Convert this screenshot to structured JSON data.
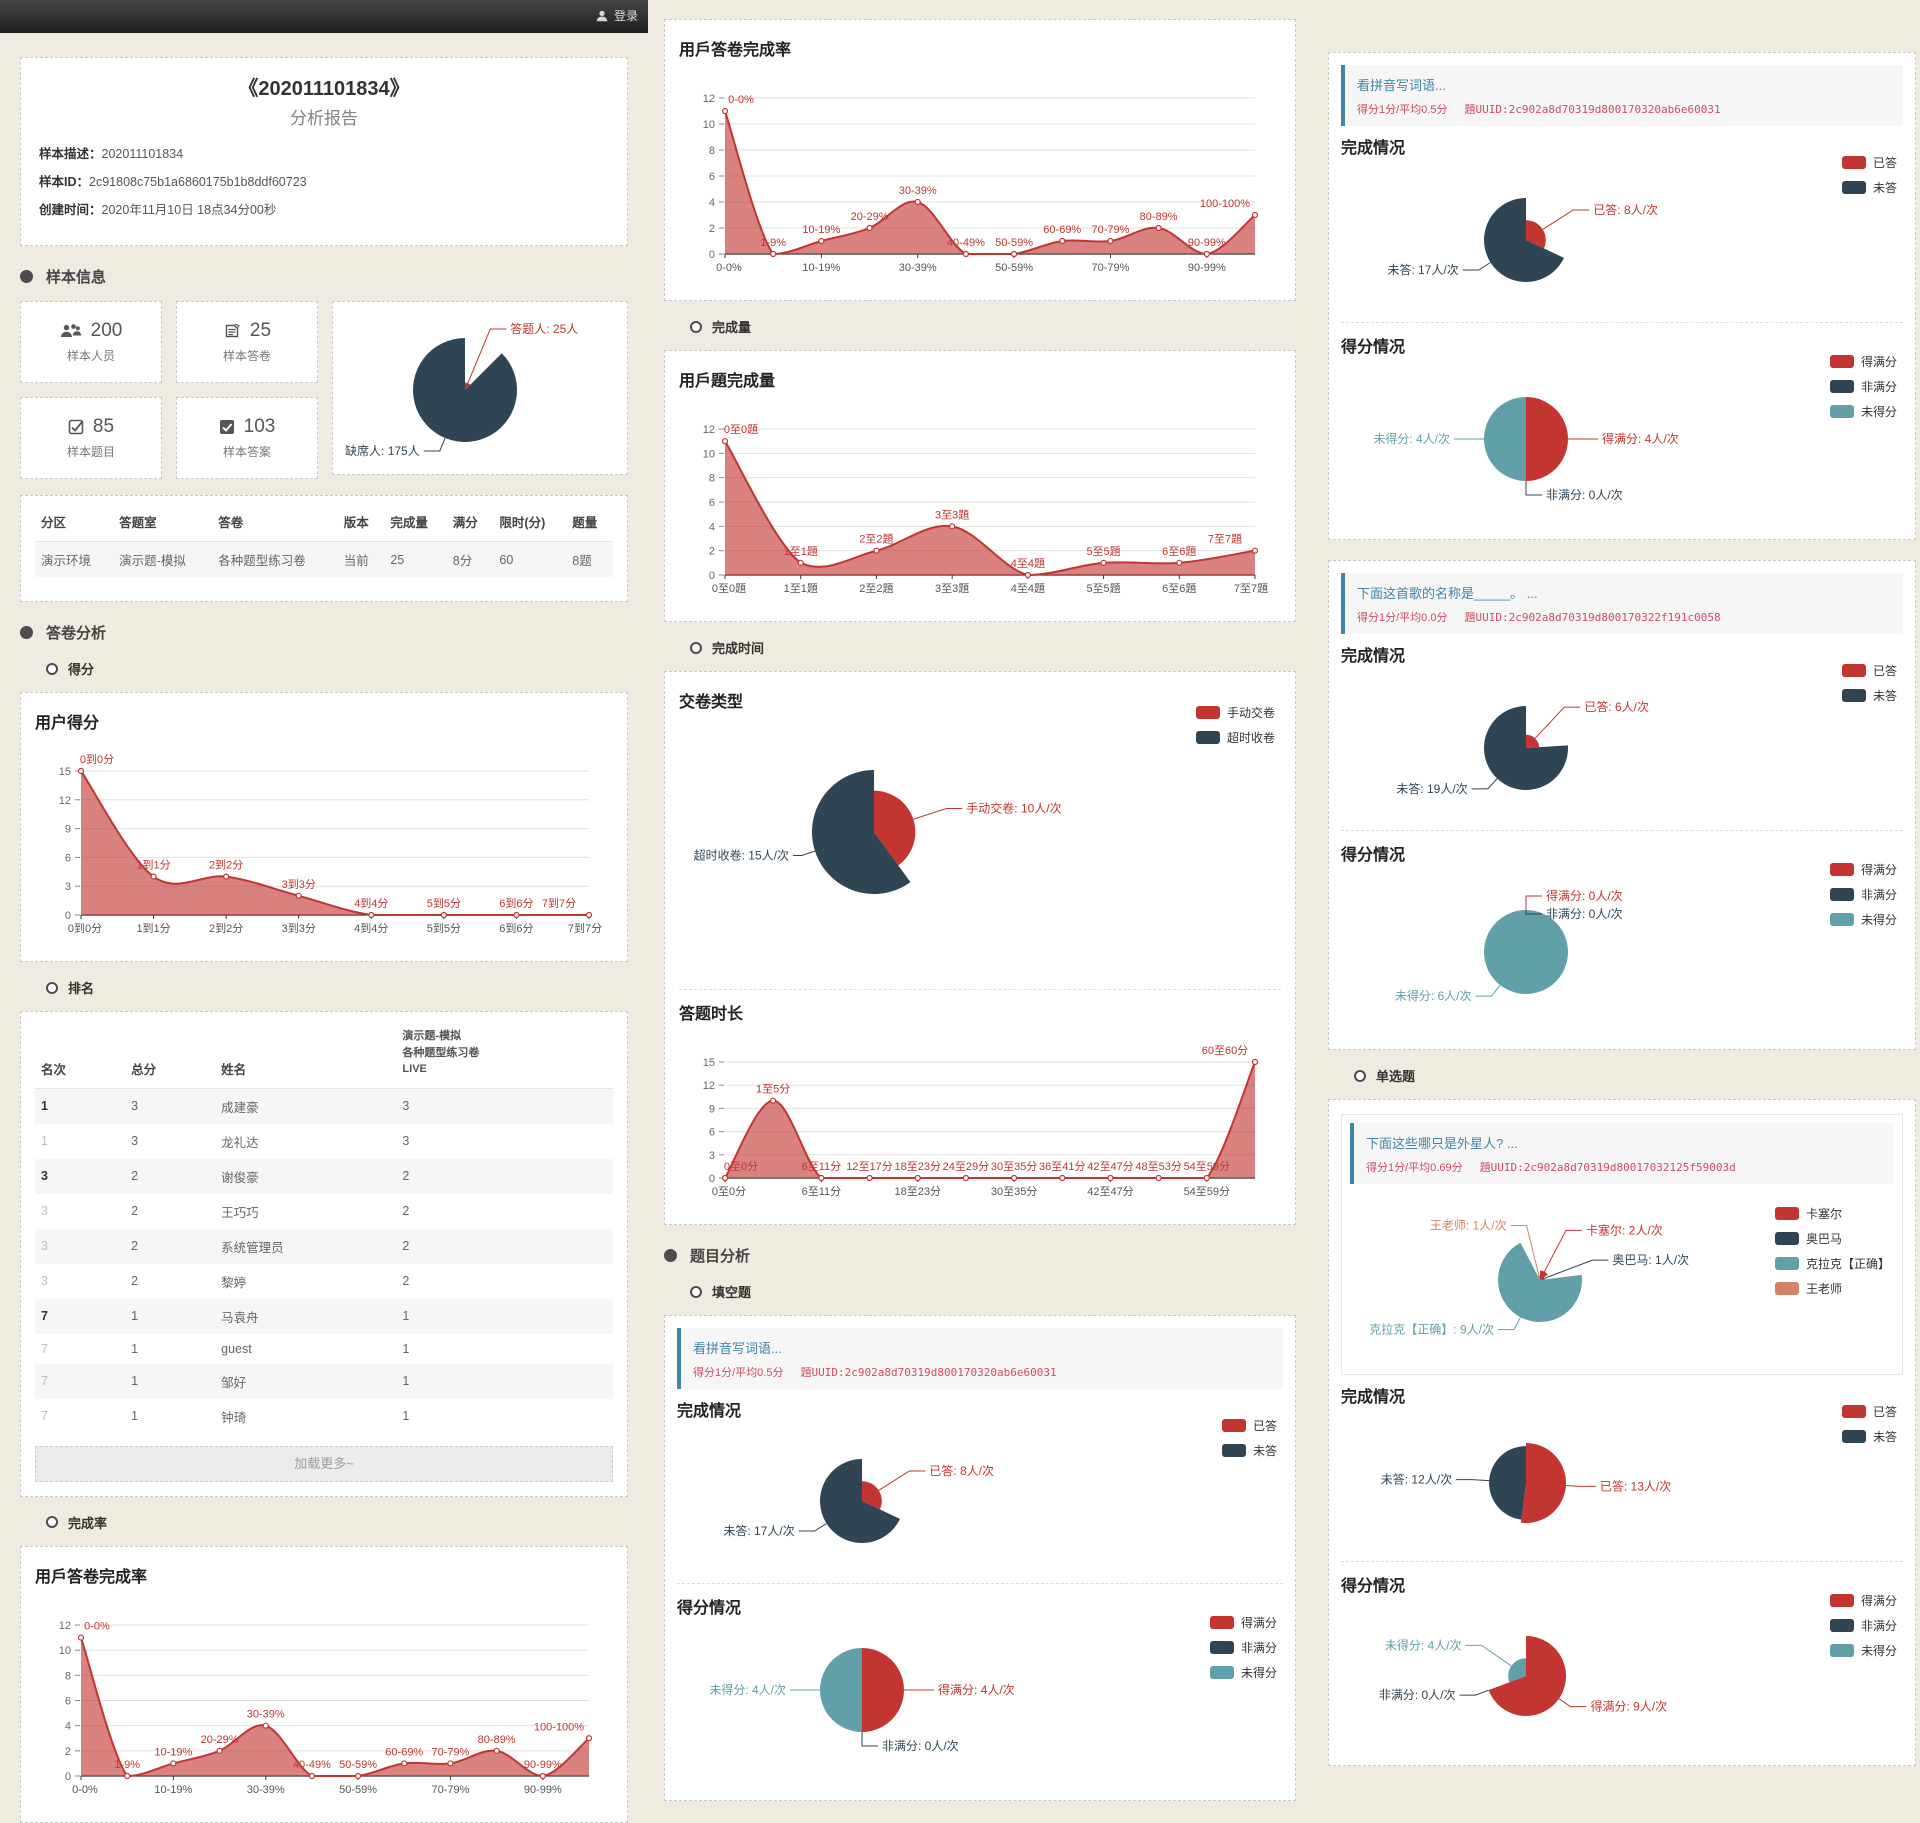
{
  "topbar": {
    "login_label": "登录"
  },
  "report": {
    "title": "《202011101834》",
    "subtitle": "分析报告",
    "desc_label": "样本描述：",
    "desc": "202011101834",
    "id_label": "样本ID：",
    "id": "2c91808c75b1a6860175b1b8ddf60723",
    "created_label": "创建时间：",
    "created": "2020年11月10日 18点34分00秒"
  },
  "sections": {
    "sample_info": "样本信息",
    "answer_analysis": "答卷分析",
    "question_analysis": "题目分析"
  },
  "subsections": {
    "score": "得分",
    "rank": "排名",
    "completion_rate": "完成率",
    "completion_amount": "完成量",
    "completion_time": "完成时间",
    "fill_blank": "填空题",
    "single_choice": "单选题"
  },
  "labels": {
    "completion": "完成情况",
    "score": "得分情况"
  },
  "stats": [
    {
      "value": "200",
      "label": "样本人员",
      "icon": "people-icon"
    },
    {
      "value": "25",
      "label": "样本答卷",
      "icon": "answer-sheet-icon"
    },
    {
      "value": "85",
      "label": "样本题目",
      "icon": "checkbox-icon"
    },
    {
      "value": "103",
      "label": "样本答案",
      "icon": "answer-icon"
    }
  ],
  "tables": {
    "sample_table": {
      "headers": [
        "分区",
        "答题室",
        "答卷",
        "版本",
        "完成量",
        "满分",
        "限时(分)",
        "题量"
      ],
      "rows": [
        [
          "演示环境",
          "演示题-模拟",
          "各种题型练习卷",
          "当前",
          "25",
          "8分",
          "60",
          "8题"
        ]
      ]
    },
    "ranking": {
      "headers": [
        "名次",
        "总分",
        "姓名",
        [
          "演示题-模拟",
          "各种题型练习卷",
          "LIVE"
        ]
      ],
      "rows": [
        [
          {
            "text": "1",
            "strong": true
          },
          "3",
          "成建豪",
          "3"
        ],
        [
          {
            "text": "1",
            "muted": true
          },
          "3",
          "龙礼达",
          "3"
        ],
        [
          {
            "text": "3",
            "strong": true
          },
          "2",
          "谢俊豪",
          "2"
        ],
        [
          {
            "text": "3",
            "muted": true
          },
          "2",
          "王巧巧",
          "2"
        ],
        [
          {
            "text": "3",
            "muted": true
          },
          "2",
          "系统管理员",
          "2"
        ],
        [
          {
            "text": "3",
            "muted": true
          },
          "2",
          "黎婷",
          "2"
        ],
        [
          {
            "text": "7",
            "strong": true
          },
          "1",
          "马袁舟",
          "1"
        ],
        [
          {
            "text": "7",
            "muted": true
          },
          "1",
          "guest",
          "1"
        ],
        [
          {
            "text": "7",
            "muted": true
          },
          "1",
          "邹好",
          "1"
        ],
        [
          {
            "text": "7",
            "muted": true
          },
          "1",
          "钟琦",
          "1"
        ]
      ],
      "load_more": "加载更多~"
    }
  },
  "questions": [
    {
      "title": "看拼音写词语...",
      "score_info": "得分1分/平均0.5分",
      "uuid": "題UUID:2c902a8d70319d800170320ab6e60031"
    },
    {
      "title": "下面这首歌的名称是_____。 ...",
      "score_info": "得分1分/平均0.0分",
      "uuid": "題UUID:2c902a8d70319d800170322f191c0058"
    },
    {
      "title": "下面这些哪只是外星人? ...",
      "score_info": "得分1分/平均0.69分",
      "uuid": "題UUID:2c902a8d70319d80017032125f59003d"
    }
  ],
  "legends": {
    "answer": [
      {
        "label": "已答",
        "color": "#c23531"
      },
      {
        "label": "未答",
        "color": "#2f4554"
      }
    ],
    "score": [
      {
        "label": "得满分",
        "color": "#c23531"
      },
      {
        "label": "非满分",
        "color": "#2f4554"
      },
      {
        "label": "未得分",
        "color": "#61a0a8"
      }
    ],
    "submit": [
      {
        "label": "手动交卷",
        "color": "#c23531"
      },
      {
        "label": "超时收卷",
        "color": "#2f4554"
      }
    ],
    "q3options": [
      {
        "label": "卡塞尔",
        "color": "#c23531"
      },
      {
        "label": "奥巴马",
        "color": "#2f4554"
      },
      {
        "label": "克拉克【正确】",
        "color": "#61a0a8"
      },
      {
        "label": "王老师",
        "color": "#d48265"
      }
    ]
  },
  "charts": {
    "score_dist": {
      "type": "area",
      "title": "用户得分",
      "categories": [
        "0到0分",
        "1到1分",
        "2到2分",
        "3到3分",
        "4到4分",
        "5到5分",
        "6到6分",
        "7到7分"
      ],
      "values": [
        15,
        4,
        4,
        2,
        0,
        0,
        0,
        0
      ],
      "yticks": [
        0,
        3,
        6,
        9,
        12,
        15
      ],
      "tick_every": 1
    },
    "completion_rate": {
      "type": "area",
      "title": "用戶答卷完成率",
      "categories": [
        "0-0%",
        "1-9%",
        "10-19%",
        "20-29%",
        "30-39%",
        "40-49%",
        "50-59%",
        "60-69%",
        "70-79%",
        "80-89%",
        "90-99%",
        "100-100%"
      ],
      "values": [
        11,
        0,
        1,
        2,
        4,
        0,
        0,
        1,
        1,
        2,
        0,
        3
      ],
      "yticks": [
        0,
        2,
        4,
        6,
        8,
        10,
        12
      ],
      "tick_every": 2
    },
    "question_completion": {
      "type": "area",
      "title": "用戶題完成量",
      "categories": [
        "0至0題",
        "1至1題",
        "2至2題",
        "3至3題",
        "4至4題",
        "5至5題",
        "6至6題",
        "7至7題"
      ],
      "values": [
        11,
        1,
        2,
        4,
        0,
        1,
        1,
        2
      ],
      "yticks": [
        0,
        2,
        4,
        6,
        8,
        10,
        12
      ],
      "tick_every": 1
    },
    "duration": {
      "type": "area",
      "title": "答题时长",
      "categories": [
        "0至0分",
        "1至5分",
        "6至11分",
        "12至17分",
        "18至23分",
        "24至29分",
        "30至35分",
        "36至41分",
        "42至47分",
        "48至53分",
        "54至59分",
        "60至60分"
      ],
      "values": [
        0,
        10,
        0,
        0,
        0,
        0,
        0,
        0,
        0,
        0,
        0,
        15
      ],
      "yticks": [
        0,
        3,
        6,
        9,
        12,
        15
      ],
      "tick_every": 2
    },
    "sample_pie": {
      "type": "pie",
      "slices": [
        {
          "label": "答题人",
          "value": 25,
          "color": "#c23531",
          "callout": "答题人: 25人"
        },
        {
          "label": "缺席人",
          "value": 175,
          "color": "#2f4554",
          "callout": "缺席人: 175人"
        }
      ]
    },
    "submit_type": {
      "type": "pie",
      "title": "交卷类型",
      "slices": [
        {
          "label": "手动交卷",
          "value": 10,
          "color": "#c23531",
          "callout": "手动交卷: 10人/次"
        },
        {
          "label": "超时收卷",
          "value": 15,
          "color": "#2f4554",
          "callout": "超时收卷: 15人/次"
        }
      ]
    },
    "q1_completion": {
      "type": "pie",
      "slices": [
        {
          "label": "已答",
          "value": 8,
          "color": "#c23531",
          "callout": "已答: 8人/次"
        },
        {
          "label": "未答",
          "value": 17,
          "color": "#2f4554",
          "callout": "未答: 17人/次"
        }
      ]
    },
    "q1_score": {
      "type": "pie",
      "slices": [
        {
          "label": "得满分",
          "value": 4,
          "color": "#c23531",
          "callout": "得满分: 4人/次"
        },
        {
          "label": "非满分",
          "value": 0,
          "color": "#2f4554",
          "callout": "非满分: 0人/次"
        },
        {
          "label": "未得分",
          "value": 4,
          "color": "#61a0a8",
          "callout": "未得分: 4人/次"
        }
      ]
    },
    "q2_completion": {
      "type": "pie",
      "slices": [
        {
          "label": "已答",
          "value": 6,
          "color": "#c23531",
          "callout": "已答: 6人/次"
        },
        {
          "label": "未答",
          "value": 19,
          "color": "#2f4554",
          "callout": "未答: 19人/次"
        }
      ]
    },
    "q2_score": {
      "type": "pie",
      "slices": [
        {
          "label": "得满分",
          "value": 0,
          "color": "#c23531",
          "callout": "得满分: 0人/次",
          "la": -90
        },
        {
          "label": "非满分",
          "value": 0,
          "color": "#2f4554",
          "callout": "非满分: 0人/次",
          "la": -90
        },
        {
          "label": "未得分",
          "value": 6,
          "color": "#61a0a8",
          "callout": "未得分: 6人/次",
          "la": 128
        }
      ]
    },
    "q3_options": {
      "type": "pie",
      "slices": [
        {
          "label": "卡塞尔",
          "value": 2,
          "color": "#c23531",
          "callout": "卡塞尔: 2人/次"
        },
        {
          "label": "奥巴马",
          "value": 1,
          "color": "#2f4554",
          "callout": "奥巴马: 1人/次"
        },
        {
          "label": "克拉克【正确】",
          "value": 9,
          "color": "#61a0a8",
          "callout": "克拉克【正确】: 9人/次"
        },
        {
          "label": "王老师",
          "value": 1,
          "color": "#d48265",
          "callout": "王老师: 1人/次"
        }
      ]
    },
    "q3_completion": {
      "type": "pie",
      "slices": [
        {
          "label": "已答",
          "value": 13,
          "color": "#c23531",
          "callout": "已答: 13人/次"
        },
        {
          "label": "未答",
          "value": 12,
          "color": "#2f4554",
          "callout": "未答: 12人/次"
        }
      ]
    },
    "q3_score": {
      "type": "pie",
      "slices": [
        {
          "label": "得满分",
          "value": 9,
          "color": "#c23531",
          "callout": "得满分: 9人/次"
        },
        {
          "label": "非满分",
          "value": 0,
          "color": "#2f4554",
          "callout": "非满分: 0人/次"
        },
        {
          "label": "未得分",
          "value": 4,
          "color": "#61a0a8",
          "callout": "未得分: 4人/次"
        }
      ]
    }
  }
}
